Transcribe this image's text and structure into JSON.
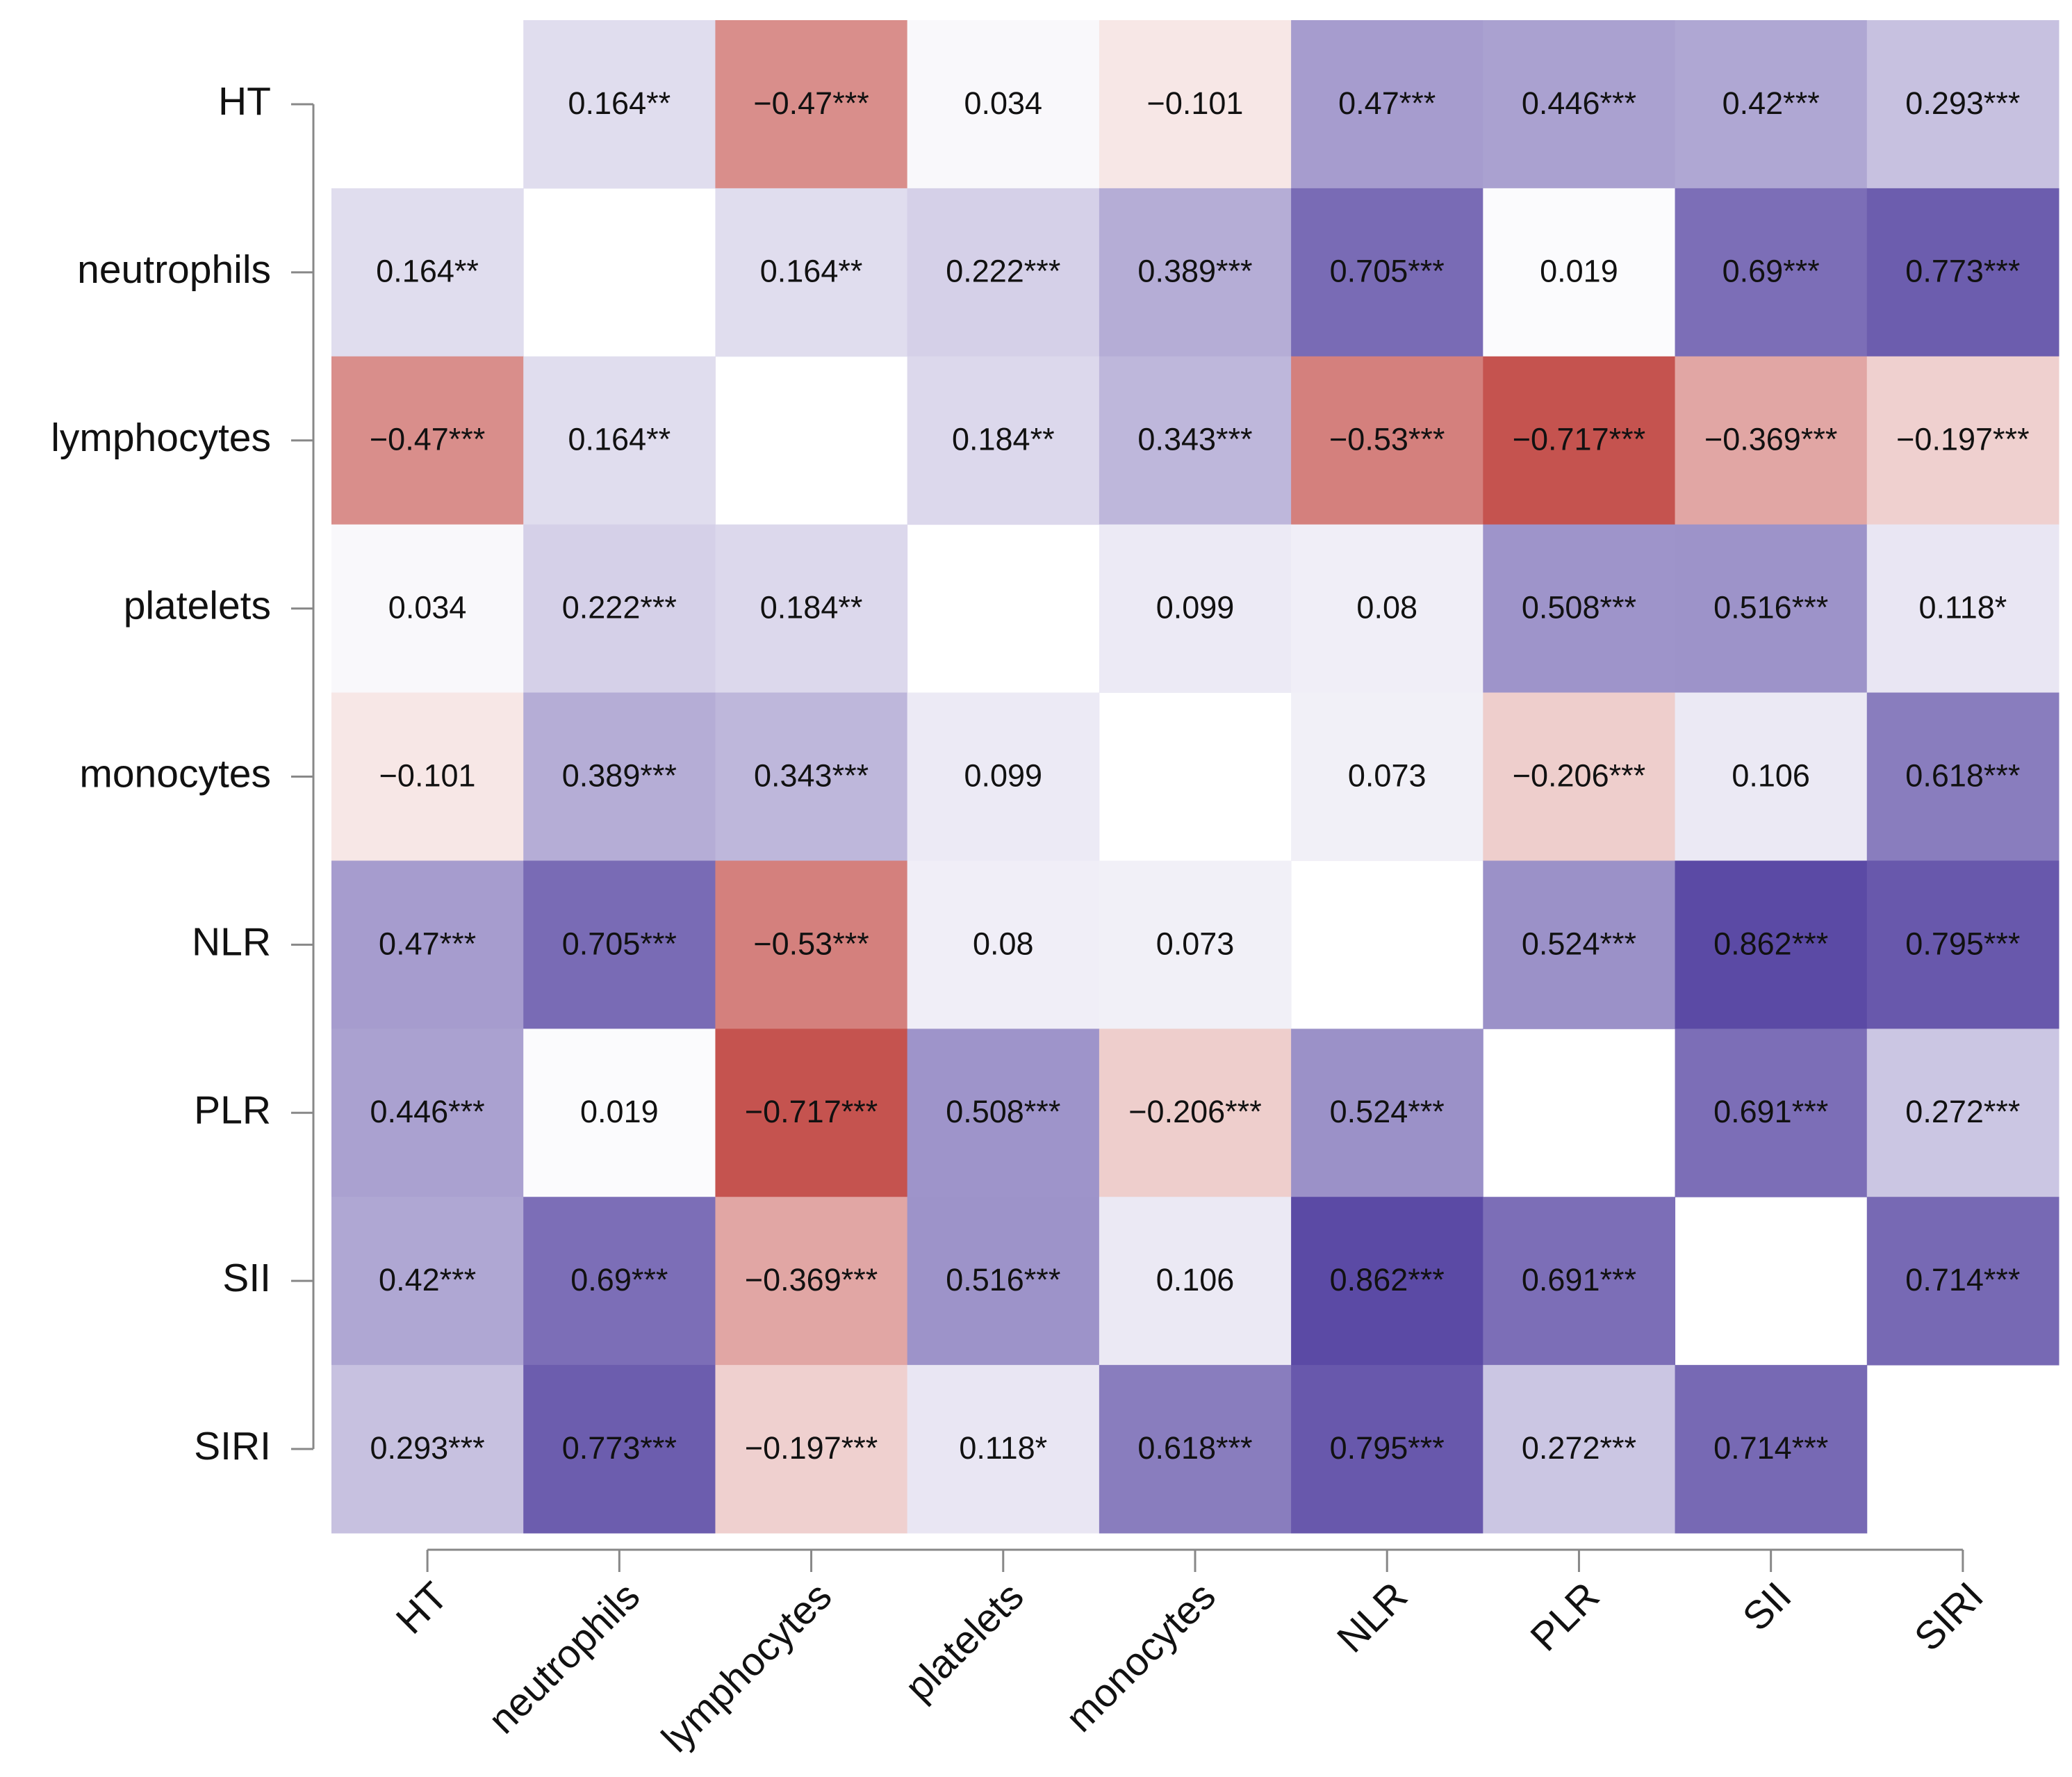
{
  "chart_data": {
    "type": "heatmap",
    "categories": [
      "HT",
      "neutrophils",
      "lymphocytes",
      "platelets",
      "monocytes",
      "NLR",
      "PLR",
      "SII",
      "SIRI"
    ],
    "values": [
      [
        null,
        0.164,
        -0.47,
        0.034,
        -0.101,
        0.47,
        0.446,
        0.42,
        0.293
      ],
      [
        0.164,
        null,
        0.164,
        0.222,
        0.389,
        0.705,
        0.019,
        0.69,
        0.773
      ],
      [
        -0.47,
        0.164,
        null,
        0.184,
        0.343,
        -0.53,
        -0.717,
        -0.369,
        -0.197
      ],
      [
        0.034,
        0.222,
        0.184,
        null,
        0.099,
        0.08,
        0.508,
        0.516,
        0.118
      ],
      [
        -0.101,
        0.389,
        0.343,
        0.099,
        null,
        0.073,
        -0.206,
        0.106,
        0.618
      ],
      [
        0.47,
        0.705,
        -0.53,
        0.08,
        0.073,
        null,
        0.524,
        0.862,
        0.795
      ],
      [
        0.446,
        0.019,
        -0.717,
        0.508,
        -0.206,
        0.524,
        null,
        0.691,
        0.272
      ],
      [
        0.42,
        0.69,
        -0.369,
        0.516,
        0.106,
        0.862,
        0.691,
        null,
        0.714
      ],
      [
        0.293,
        0.773,
        -0.197,
        0.118,
        0.618,
        0.795,
        0.272,
        0.714,
        null
      ]
    ],
    "value_labels": [
      [
        null,
        "0.164**",
        "−0.47***",
        "0.034",
        "−0.101",
        "0.47***",
        "0.446***",
        "0.42***",
        "0.293***"
      ],
      [
        "0.164**",
        null,
        "0.164**",
        "0.222***",
        "0.389***",
        "0.705***",
        "0.019",
        "0.69***",
        "0.773***"
      ],
      [
        "−0.47***",
        "0.164**",
        null,
        "0.184**",
        "0.343***",
        "−0.53***",
        "−0.717***",
        "−0.369***",
        "−0.197***"
      ],
      [
        "0.034",
        "0.222***",
        "0.184**",
        null,
        "0.099",
        "0.08",
        "0.508***",
        "0.516***",
        "0.118*"
      ],
      [
        "−0.101",
        "0.389***",
        "0.343***",
        "0.099",
        null,
        "0.073",
        "−0.206***",
        "0.106",
        "0.618***"
      ],
      [
        "0.47***",
        "0.705***",
        "−0.53***",
        "0.08",
        "0.073",
        null,
        "0.524***",
        "0.862***",
        "0.795***"
      ],
      [
        "0.446***",
        "0.019",
        "−0.717***",
        "0.508***",
        "−0.206***",
        "0.524***",
        null,
        "0.691***",
        "0.272***"
      ],
      [
        "0.42***",
        "0.69***",
        "−0.369***",
        "0.516***",
        "0.106",
        "0.862***",
        "0.691***",
        null,
        "0.714***"
      ],
      [
        "0.293***",
        "0.773***",
        "−0.197***",
        "0.118*",
        "0.618***",
        "0.795***",
        "0.272***",
        "0.714***",
        null
      ]
    ],
    "colors": {
      "negative": "#b9302b",
      "zero": "#ffffff",
      "positive": "#5b4aa5"
    }
  }
}
